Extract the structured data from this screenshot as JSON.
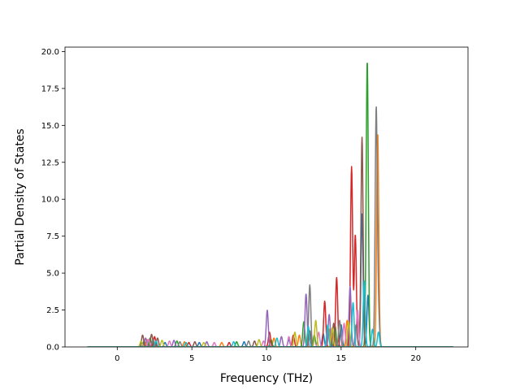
{
  "chart_data": {
    "type": "line",
    "title": "",
    "xlabel": "Frequency (THz)",
    "ylabel": "Partial Density of States",
    "xlim": [
      -3.5,
      23.5
    ],
    "ylim": [
      0,
      20.3
    ],
    "xticks": [
      0,
      5,
      10,
      15,
      20
    ],
    "xtick_labels": [
      "0",
      "5",
      "10",
      "15",
      "20"
    ],
    "yticks": [
      0.0,
      2.5,
      5.0,
      7.5,
      10.0,
      12.5,
      15.0,
      17.5,
      20.0
    ],
    "ytick_labels": [
      "0.0",
      "2.5",
      "5.0",
      "7.5",
      "10.0",
      "12.5",
      "15.0",
      "17.5",
      "20.0"
    ],
    "grid": false,
    "legend": "none",
    "peak_width": 0.07,
    "series": [
      {
        "color": "#1f77b4",
        "peaks": [
          [
            1.8,
            0.4
          ],
          [
            3.2,
            0.3
          ],
          [
            5.5,
            0.3
          ],
          [
            8.5,
            0.35
          ],
          [
            11.5,
            0.5
          ],
          [
            13.8,
            0.9
          ],
          [
            15.0,
            1.5
          ],
          [
            16.4,
            9.0
          ],
          [
            16.8,
            3.5
          ]
        ]
      },
      {
        "color": "#ff7f0e",
        "peaks": [
          [
            2.0,
            0.5
          ],
          [
            4.5,
            0.35
          ],
          [
            7.0,
            0.3
          ],
          [
            10.5,
            0.6
          ],
          [
            12.2,
            0.8
          ],
          [
            14.2,
            1.2
          ],
          [
            15.4,
            1.8
          ],
          [
            17.45,
            14.5
          ]
        ]
      },
      {
        "color": "#2ca02c",
        "peaks": [
          [
            2.2,
            0.6
          ],
          [
            4.0,
            0.4
          ],
          [
            8.0,
            0.35
          ],
          [
            10.3,
            0.5
          ],
          [
            12.5,
            1.7
          ],
          [
            13.2,
            0.8
          ],
          [
            14.6,
            1.4
          ],
          [
            16.75,
            19.4
          ]
        ]
      },
      {
        "color": "#d62728",
        "peaks": [
          [
            2.5,
            0.7
          ],
          [
            4.8,
            0.3
          ],
          [
            7.5,
            0.3
          ],
          [
            10.2,
            1.0
          ],
          [
            11.8,
            0.8
          ],
          [
            13.9,
            3.1
          ],
          [
            14.7,
            4.7
          ],
          [
            15.7,
            12.2
          ],
          [
            15.95,
            7.6
          ]
        ]
      },
      {
        "color": "#9467bd",
        "peaks": [
          [
            1.9,
            0.6
          ],
          [
            3.8,
            0.45
          ],
          [
            6.0,
            0.35
          ],
          [
            10.05,
            2.5
          ],
          [
            11.0,
            0.7
          ],
          [
            12.65,
            3.6
          ],
          [
            14.2,
            2.2
          ],
          [
            15.6,
            4.1
          ]
        ]
      },
      {
        "color": "#8c564b",
        "peaks": [
          [
            1.7,
            0.8
          ],
          [
            2.3,
            0.85
          ],
          [
            2.7,
            0.6
          ],
          [
            5.2,
            0.35
          ],
          [
            9.2,
            0.4
          ],
          [
            12.9,
            1.1
          ],
          [
            14.5,
            1.6
          ],
          [
            16.4,
            14.2
          ]
        ]
      },
      {
        "color": "#e377c2",
        "peaks": [
          [
            2.1,
            0.5
          ],
          [
            3.5,
            0.4
          ],
          [
            6.5,
            0.3
          ],
          [
            9.8,
            0.4
          ],
          [
            11.5,
            0.7
          ],
          [
            13.5,
            1.0
          ],
          [
            15.2,
            1.6
          ],
          [
            16.1,
            2.5
          ]
        ]
      },
      {
        "color": "#7f7f7f",
        "peaks": [
          [
            2.4,
            0.5
          ],
          [
            4.2,
            0.35
          ],
          [
            8.8,
            0.4
          ],
          [
            12.9,
            4.2
          ],
          [
            14.9,
            1.8
          ],
          [
            16.0,
            1.5
          ],
          [
            17.35,
            16.1
          ],
          [
            17.5,
            2.3
          ]
        ]
      },
      {
        "color": "#bcbd22",
        "peaks": [
          [
            1.6,
            0.4
          ],
          [
            3.0,
            0.45
          ],
          [
            5.8,
            0.3
          ],
          [
            9.5,
            0.5
          ],
          [
            11.9,
            1.0
          ],
          [
            13.3,
            1.8
          ],
          [
            14.4,
            1.3
          ],
          [
            15.5,
            1.7
          ]
        ]
      },
      {
        "color": "#17becf",
        "peaks": [
          [
            2.6,
            0.4
          ],
          [
            4.6,
            0.3
          ],
          [
            7.8,
            0.35
          ],
          [
            10.7,
            0.6
          ],
          [
            12.8,
            1.4
          ],
          [
            14.1,
            1.5
          ],
          [
            15.8,
            3.0
          ],
          [
            16.55,
            4.5
          ],
          [
            17.1,
            1.2
          ],
          [
            17.5,
            1.0
          ]
        ]
      }
    ]
  }
}
